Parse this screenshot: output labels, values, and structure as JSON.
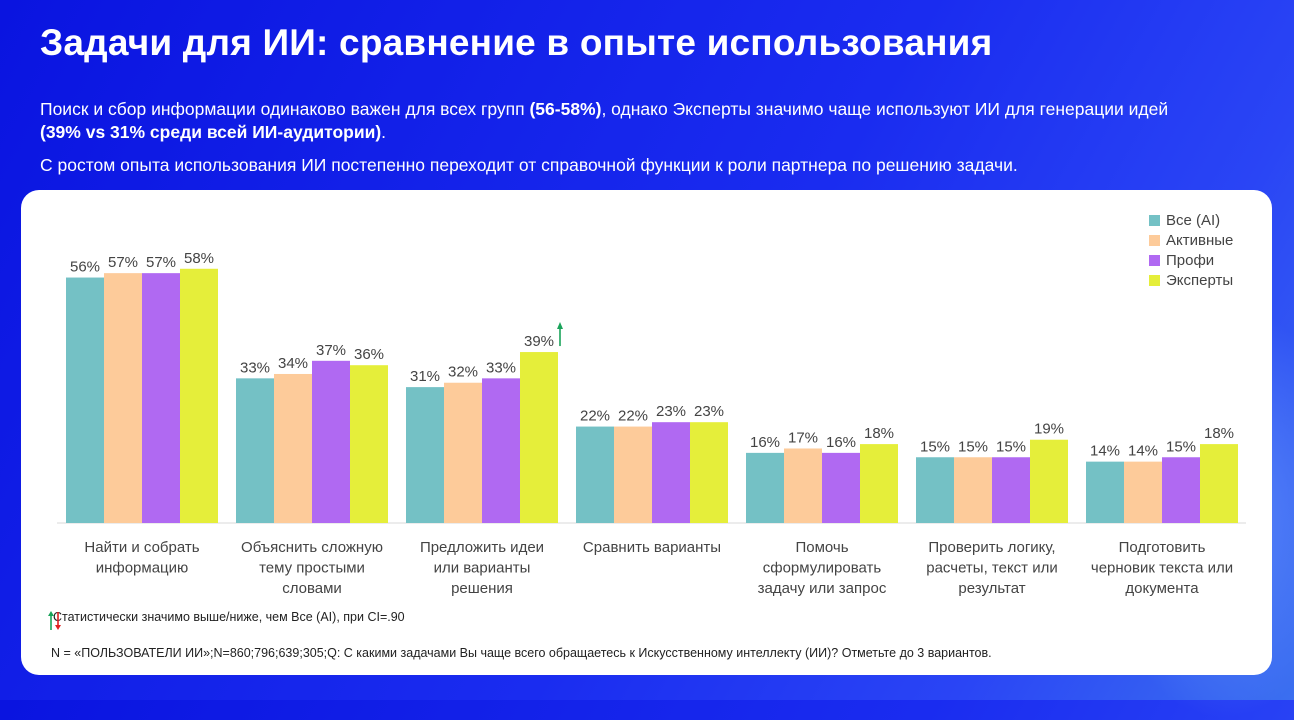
{
  "header": {
    "title": "Задачи для ИИ: сравнение в опыте использования",
    "subtitle_p1": "Поиск и сбор информации одинаково важен для всех групп ",
    "subtitle_b1": "(56-58%)",
    "subtitle_p2": ", однако Эксперты значимо чаще используют ИИ для генерации идей ",
    "subtitle_b2": "(39% vs 31% среди всей ИИ-аудитории)",
    "subtitle_p3": ".",
    "subtitle2": "С ростом опыта использования ИИ постепенно переходит от справочной функции к роли партнера по решению задачи."
  },
  "chart_data": {
    "type": "bar",
    "categories": [
      [
        "Найти и собрать",
        "информацию"
      ],
      [
        "Объяснить сложную",
        "тему простыми",
        "словами"
      ],
      [
        "Предложить идеи",
        "или варианты",
        "решения"
      ],
      [
        "Сравнить варианты"
      ],
      [
        "Помочь",
        "сформулировать",
        "задачу или запрос"
      ],
      [
        "Проверить логику,",
        "расчеты, текст или",
        "результат"
      ],
      [
        "Подготовить",
        "черновик текста или",
        "документа"
      ]
    ],
    "series": [
      {
        "name": "Все (AI)",
        "color": "#74c1c5",
        "values": [
          56,
          33,
          31,
          22,
          16,
          15,
          14
        ]
      },
      {
        "name": "Активные",
        "color": "#fdcb9a",
        "values": [
          57,
          34,
          32,
          22,
          17,
          15,
          14
        ]
      },
      {
        "name": "Профи",
        "color": "#b069f2",
        "values": [
          57,
          37,
          33,
          23,
          16,
          15,
          15
        ]
      },
      {
        "name": "Эксперты",
        "color": "#e5ee3a",
        "values": [
          58,
          36,
          39,
          23,
          18,
          19,
          18
        ]
      }
    ],
    "value_suffix": "%",
    "ylim": [
      0,
      60
    ],
    "significant_up": [
      {
        "category": 2,
        "series": 3
      }
    ],
    "legend_position": "top-right",
    "grid": false
  },
  "footnotes": {
    "significance": "Статистически значимо выше/ниже, чем Все (AI), при CI=.90",
    "base": "N = «ПОЛЬЗОВАТЕЛИ ИИ»;N=860;796;639;305;Q: С какими задачами Вы чаще всего обращаетесь к Искусственному интеллекту (ИИ)? Отметьте до 3 вариантов."
  },
  "colors": {
    "up_arrow": "#1aa35a",
    "down_arrow": "#e02020"
  }
}
